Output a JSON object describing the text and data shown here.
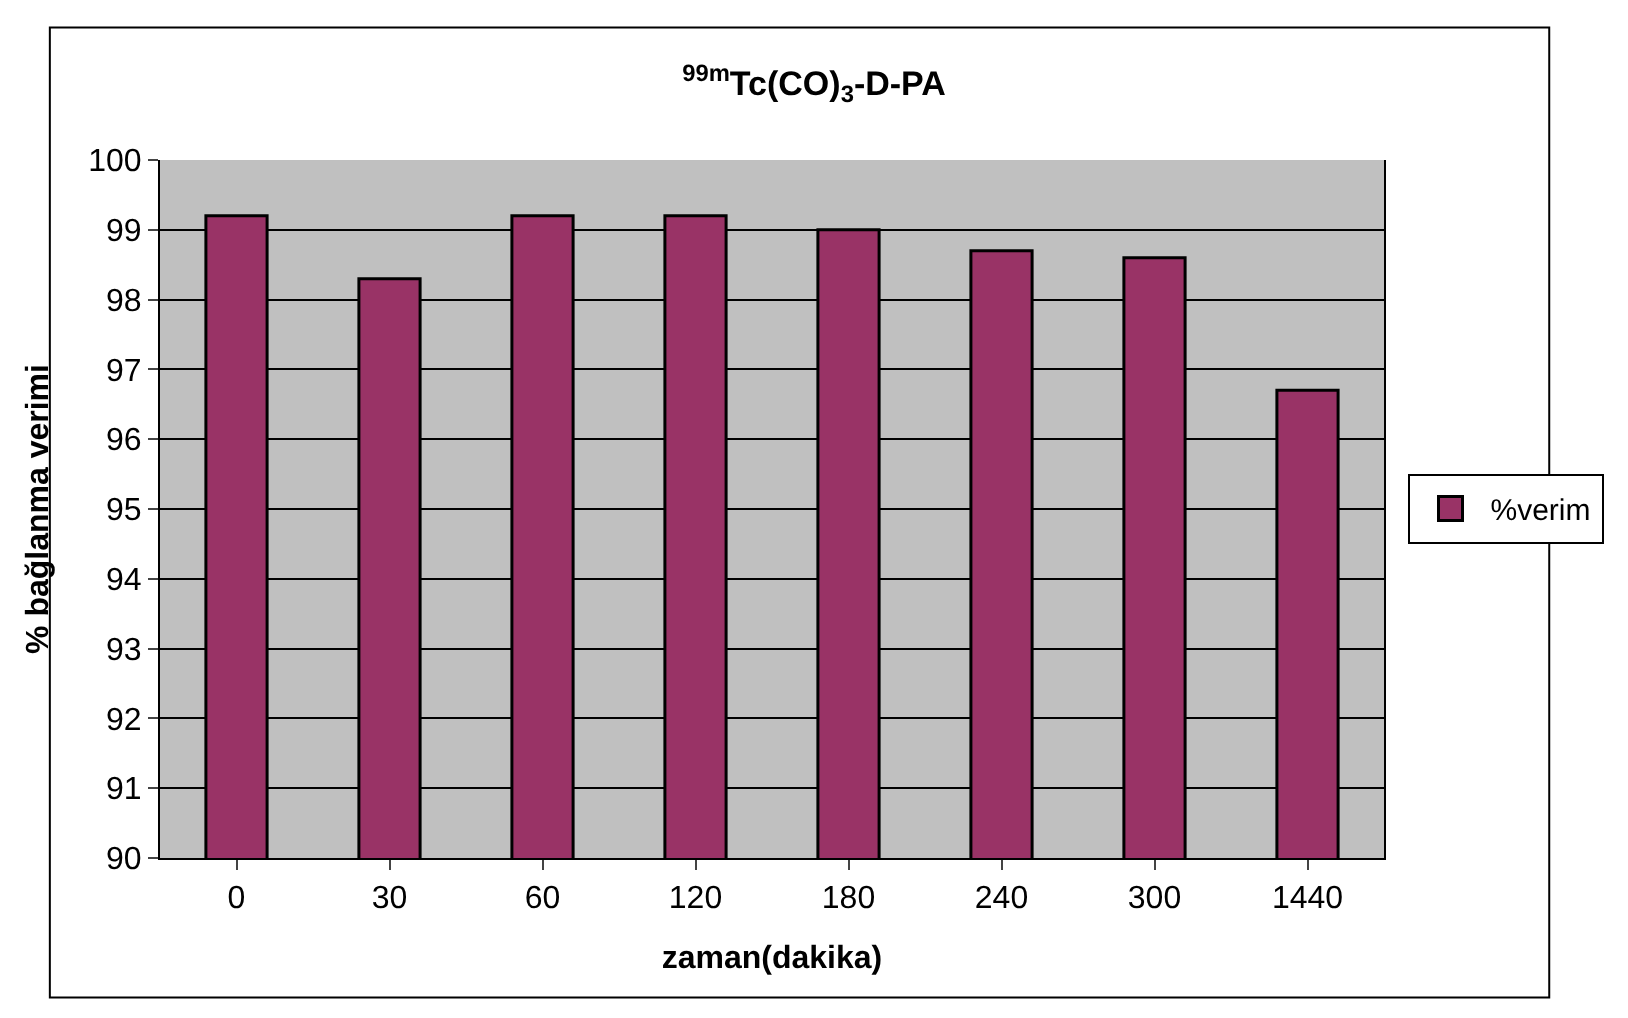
{
  "chart_data": {
    "type": "bar",
    "title": "$^{99m}$Tc(CO)$_{3}$-D-PA",
    "xlabel": "zaman(dakika)",
    "ylabel": "% bağlanma verimi",
    "categories": [
      "0",
      "30",
      "60",
      "120",
      "180",
      "240",
      "300",
      "1440"
    ],
    "series": [
      {
        "name": "%verim",
        "color": "#993366",
        "values": [
          99.2,
          98.3,
          99.2,
          99.2,
          99.0,
          98.7,
          98.6,
          96.7
        ]
      }
    ],
    "ylim": [
      90,
      100
    ],
    "yticks": [
      90,
      91,
      92,
      93,
      94,
      95,
      96,
      97,
      98,
      99,
      100
    ],
    "grid": "y",
    "legend": "right"
  }
}
